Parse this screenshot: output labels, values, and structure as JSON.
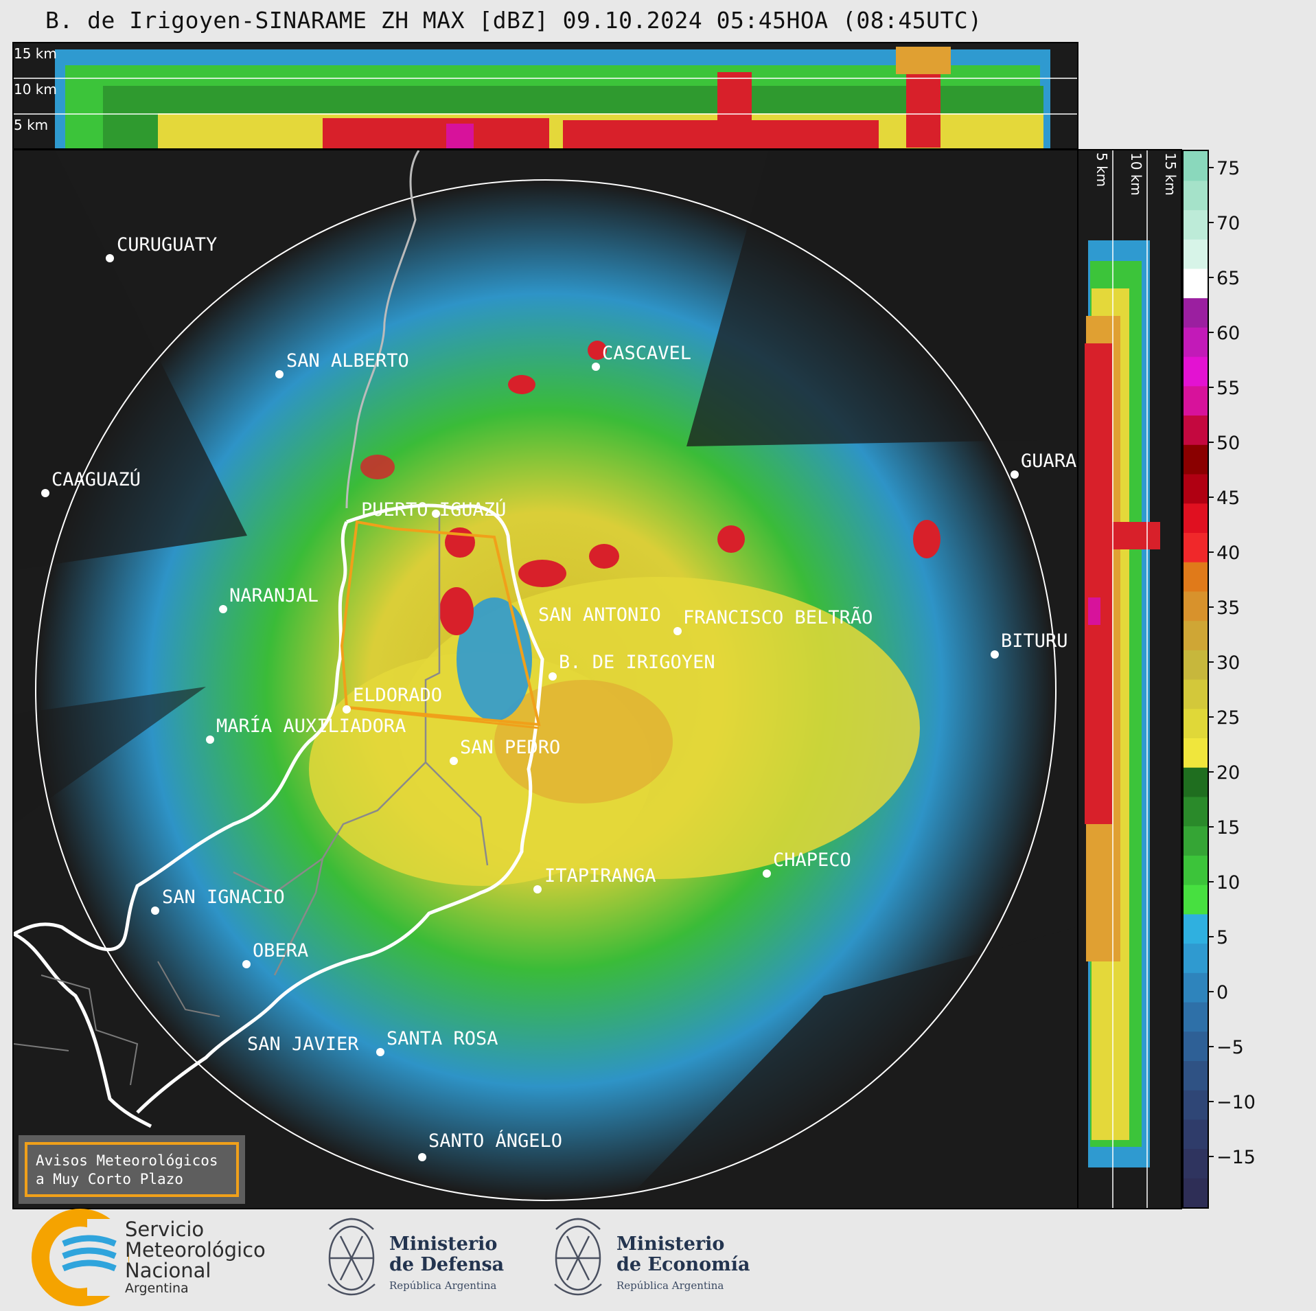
{
  "title": "B. de Irigoyen-SINARAME ZH MAX [dBZ] 09.10.2024 05:45HOA (08:45UTC)",
  "top_section": {
    "height_labels": [
      "15 km",
      "10 km",
      "5 km"
    ]
  },
  "side_section": {
    "height_labels": [
      "5 km",
      "10 km",
      "15 km"
    ]
  },
  "colorbar": {
    "unit": "dBZ",
    "ticks": [
      "75",
      "70",
      "65",
      "60",
      "55",
      "50",
      "45",
      "40",
      "35",
      "30",
      "25",
      "20",
      "15",
      "10",
      "5",
      "0",
      "−5",
      "−10",
      "−15"
    ]
  },
  "colors": {
    "background": "#1b1b1b",
    "page": "#e8e8e8",
    "warning_border": "#f0a01a",
    "warning_bg": "#5e5e5e",
    "smn_orange": "#f5a300",
    "smn_blue": "#2fa4dc",
    "ministry_navy": "#23344f"
  },
  "cities": [
    {
      "name": "CURUGUATY"
    },
    {
      "name": "SAN ALBERTO"
    },
    {
      "name": "CASCAVEL"
    },
    {
      "name": "CAAGUAZÚ"
    },
    {
      "name": "GUARA"
    },
    {
      "name": "PUERTO IGUAZÚ"
    },
    {
      "name": "NARANJAL"
    },
    {
      "name": "SAN ANTONIO"
    },
    {
      "name": "FRANCISCO BELTRÃO"
    },
    {
      "name": "BITURU"
    },
    {
      "name": "B. DE IRIGOYEN"
    },
    {
      "name": "ELDORADO"
    },
    {
      "name": "MARÍA AUXILIADORA"
    },
    {
      "name": "SAN PEDRO"
    },
    {
      "name": "ITAPIRANGA"
    },
    {
      "name": "CHAPECO"
    },
    {
      "name": "SAN IGNACIO"
    },
    {
      "name": "OBERA"
    },
    {
      "name": "SAN JAVIER"
    },
    {
      "name": "SANTA ROSA"
    },
    {
      "name": "SANTO ÁNGELO"
    }
  ],
  "warning_box": {
    "line1": "Avisos Meteorológicos",
    "line2": "a Muy Corto Plazo"
  },
  "footer": {
    "smn": {
      "line1": "Servicio",
      "line2": "Meteorológico",
      "line3": "Nacional",
      "country": "Argentina"
    },
    "defensa": {
      "line1": "Ministerio",
      "line2": "de Defensa",
      "sub": "República Argentina"
    },
    "economia": {
      "line1": "Ministerio",
      "line2": "de Economía",
      "sub": "República Argentina"
    }
  }
}
